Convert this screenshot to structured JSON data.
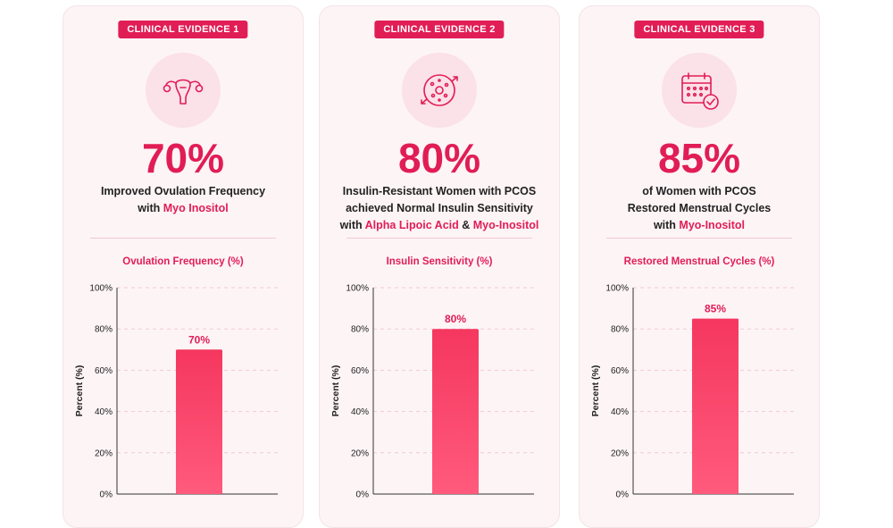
{
  "colors": {
    "accent": "#e11d56",
    "bar": "#f5375f",
    "card": "#fdf4f6"
  },
  "cards": [
    {
      "badge": "CLINICAL EVIDENCE 1",
      "icon": "uterus-icon",
      "big_pct": "70%",
      "desc_lines": [
        [
          {
            "t": "Improved Ovulation Frequency",
            "hl": false
          }
        ],
        [
          {
            "t": "with ",
            "hl": false
          },
          {
            "t": "Myo Inositol",
            "hl": true
          }
        ]
      ],
      "chart_title": "Ovulation Frequency (%)"
    },
    {
      "badge": "CLINICAL EVIDENCE 2",
      "icon": "cell-icon",
      "big_pct": "80%",
      "desc_lines": [
        [
          {
            "t": "Insulin-Resistant Women with PCOS",
            "hl": false
          }
        ],
        [
          {
            "t": "achieved Normal Insulin Sensitivity",
            "hl": false
          }
        ],
        [
          {
            "t": "with ",
            "hl": false
          },
          {
            "t": "Alpha Lipoic Acid",
            "hl": true
          },
          {
            "t": " & ",
            "hl": false
          },
          {
            "t": "Myo-Inositol",
            "hl": true
          }
        ]
      ],
      "chart_title": "Insulin Sensitivity (%)"
    },
    {
      "badge": "CLINICAL EVIDENCE 3",
      "icon": "calendar-check-icon",
      "big_pct": "85%",
      "desc_lines": [
        [
          {
            "t": "of Women with PCOS",
            "hl": false
          }
        ],
        [
          {
            "t": "Restored Menstrual Cycles",
            "hl": false
          }
        ],
        [
          {
            "t": "with ",
            "hl": false
          },
          {
            "t": "Myo-Inositol",
            "hl": true
          }
        ]
      ],
      "chart_title": "Restored Menstrual Cycles (%)"
    }
  ],
  "chart_data": [
    {
      "type": "bar",
      "title": "Ovulation Frequency (%)",
      "ylabel": "Percent (%)",
      "values": [
        70
      ],
      "data_labels": [
        "70%"
      ],
      "ylim": [
        0,
        100
      ],
      "yticks": [
        "0%",
        "20%",
        "40%",
        "60%",
        "80%",
        "100%"
      ],
      "grid": true
    },
    {
      "type": "bar",
      "title": "Insulin Sensitivity (%)",
      "ylabel": "Percent (%)",
      "values": [
        80
      ],
      "data_labels": [
        "80%"
      ],
      "ylim": [
        0,
        100
      ],
      "yticks": [
        "0%",
        "20%",
        "40%",
        "60%",
        "80%",
        "100%"
      ],
      "grid": true
    },
    {
      "type": "bar",
      "title": "Restored Menstrual Cycles (%)",
      "ylabel": "Percent (%)",
      "values": [
        85
      ],
      "data_labels": [
        "85%"
      ],
      "ylim": [
        0,
        100
      ],
      "yticks": [
        "0%",
        "20%",
        "40%",
        "60%",
        "80%",
        "100%"
      ],
      "grid": true
    }
  ]
}
